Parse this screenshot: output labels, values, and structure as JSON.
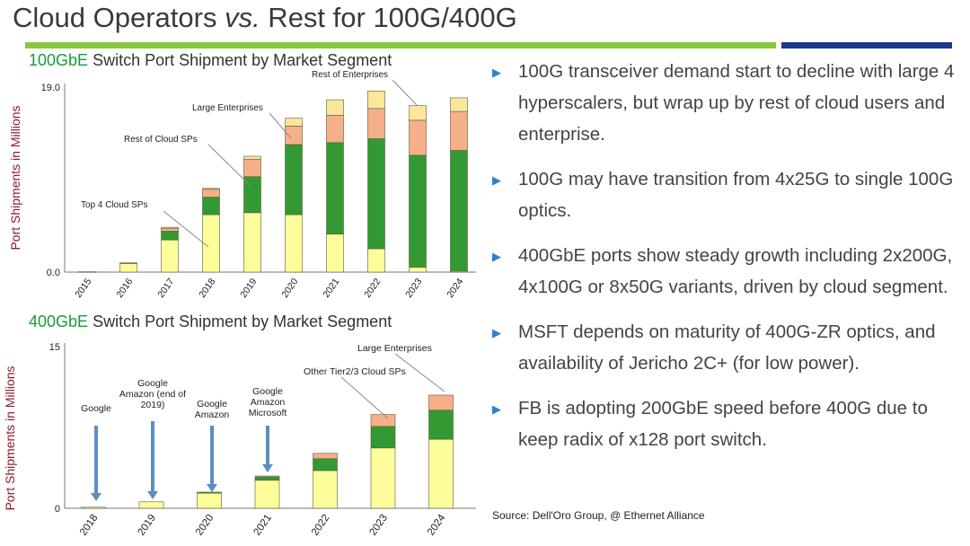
{
  "slide": {
    "title_a": "Cloud Operators ",
    "title_vs": "vs.",
    "title_b": " Rest for 100G/400G"
  },
  "bullets": [
    "100G transceiver demand start to decline with large 4 hyperscalers, but wrap up by rest of cloud users and enterprise.",
    "100G may have transition from 4x25G to single 100G optics.",
    "400GbE ports show steady growth including 2x200G, 4x100G or 8x50G variants, driven by cloud segment.",
    "MSFT depends on maturity of 400G-ZR optics, and availability of Jericho 2C+ (for low power).",
    "FB is adopting 200GbE speed before 400G due to keep radix of x128 port switch."
  ],
  "source": "Source: Dell'Oro Group, @ Ethernet Alliance",
  "colors": {
    "top4": "#fdfd9c",
    "rest_cloud": "#339933",
    "large_ent": "#f5b08a",
    "rest_ent": "#fbe79a",
    "arrow": "#5a8fc2"
  },
  "chart_data": [
    {
      "type": "bar",
      "stacked": true,
      "title_accent": "100GbE",
      "title_rest": " Switch Port Shipment by Market Segment",
      "ylabel": "Port  Shipments in Millions",
      "ylim": [
        0,
        19
      ],
      "y_ticks": [
        "0.0",
        "19.0"
      ],
      "categories": [
        "2015",
        "2016",
        "2017",
        "2018",
        "2019",
        "2020",
        "2021",
        "2022",
        "2023",
        "2024"
      ],
      "series": [
        {
          "values": [
            0.05,
            0.9,
            3.3,
            5.9,
            6.1,
            5.9,
            3.9,
            2.4,
            0.5,
            0.1
          ]
        },
        {
          "values": [
            0,
            0.05,
            0.9,
            1.8,
            3.7,
            7.2,
            9.4,
            11.3,
            11.5,
            12.4
          ]
        },
        {
          "values": [
            0,
            0,
            0.3,
            0.8,
            1.8,
            1.9,
            2.8,
            3.1,
            3.6,
            4.0
          ]
        },
        {
          "values": [
            0,
            0,
            0.1,
            0.1,
            0.3,
            0.8,
            1.6,
            1.8,
            1.5,
            1.4
          ]
        }
      ],
      "annotations": [
        {
          "text": "Top 4 Cloud SPs"
        },
        {
          "text": "Rest of Cloud SPs"
        },
        {
          "text": "Large Enterprises"
        },
        {
          "text": "Rest of Enterprises"
        }
      ]
    },
    {
      "type": "bar",
      "stacked": true,
      "title_accent": "400GbE",
      "title_rest": " Switch Port Shipment by Market Segment",
      "ylabel": "Port  Shipments in Millions",
      "ylim": [
        0,
        15
      ],
      "y_ticks": [
        "0",
        "15"
      ],
      "categories": [
        "2018",
        "2019",
        "2020",
        "2021",
        "2022",
        "2023",
        "2024"
      ],
      "series": [
        {
          "values": [
            0.1,
            0.6,
            1.4,
            2.6,
            3.5,
            5.6,
            6.4
          ]
        },
        {
          "values": [
            0,
            0,
            0.1,
            0.3,
            1.1,
            2.0,
            2.7
          ]
        },
        {
          "values": [
            0,
            0,
            0,
            0.1,
            0.5,
            1.1,
            1.4
          ]
        }
      ],
      "arrow_labels": [
        {
          "lines": [
            "Google"
          ]
        },
        {
          "lines": [
            "Google",
            "Amazon (end of",
            "2019)"
          ]
        },
        {
          "lines": [
            "Google",
            "Amazon"
          ]
        },
        {
          "lines": [
            "Google",
            "Amazon",
            "Microsoft"
          ]
        }
      ],
      "annotations": [
        {
          "text": "Other Tier2/3 Cloud SPs"
        },
        {
          "text": "Large Enterprises"
        }
      ]
    }
  ]
}
